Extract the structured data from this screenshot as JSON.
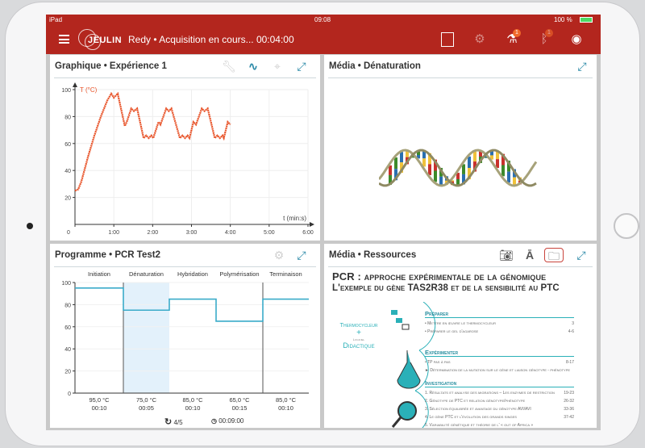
{
  "status_bar": {
    "device": "iPad",
    "time": "09:08",
    "battery": "100 %"
  },
  "app_bar": {
    "logo": "JEULIN",
    "title": "Redy • Acquisition en cours... 00:04:00",
    "icons": [
      {
        "name": "stop-icon"
      },
      {
        "name": "settings-icon"
      },
      {
        "name": "flask-icon",
        "badge": "1"
      },
      {
        "name": "bluetooth-icon",
        "badge": "1"
      },
      {
        "name": "eye-icon"
      }
    ]
  },
  "graph_panel": {
    "title": "Graphique • Expérience 1",
    "tools": [
      "wrench-icon",
      "curve-icon",
      "crosshair-icon",
      "expand-icon"
    ]
  },
  "media_panel": {
    "title": "Média • Dénaturation"
  },
  "program_panel": {
    "title": "Programme • PCR Test2",
    "cycle": "4/5",
    "duration": "00:09:00"
  },
  "resources_panel": {
    "title": "Média • Ressources",
    "tools": [
      "camera-icon",
      "text-icon",
      "folder-icon",
      "expand-icon"
    ],
    "active_tool": "folder-icon",
    "document": {
      "title1": "PCR : approche expérimentale de la génomique",
      "title2": "L'exemple du gène TAS2R38 et de la sensibilité au PTC",
      "side": {
        "line1": "Thermocycleur",
        "plus": "+",
        "small": "Logiciel",
        "line2": "Didactique"
      },
      "sections": [
        {
          "heading": "Préparer",
          "items": [
            {
              "text": "•  Mettre en œuvre le thermocycleur",
              "page": "3"
            },
            {
              "text": "•  Préparer le gel d'agarose",
              "page": "4-6"
            }
          ]
        },
        {
          "heading": "Expérimenter",
          "items": [
            {
              "text": "•  TP pas à pas",
              "page": "8-17"
            },
            {
              "text": "► Détermination de la mutation sur le gène et liaison génotype - phénotype",
              "page": ""
            }
          ]
        },
        {
          "heading": "Investigation",
          "items": [
            {
              "text": "1. Résultats et analyse des migrations – Les enzymes de restriction",
              "page": "19-23"
            },
            {
              "text": "2. Génotype de PTC et relation génotype/phénotype",
              "page": "26-32"
            },
            {
              "text": "3. Sélection équilibrée et avantage du génotype AVI/AVI",
              "page": "33-36"
            },
            {
              "text": "4. Le gène PTC et l'évolution des grands singes",
              "page": "37-42"
            },
            {
              "text": "5. Variabilité génétique et théorie de l' « out of Africa »",
              "page": ""
            }
          ]
        }
      ]
    }
  },
  "chart_data": [
    {
      "type": "line",
      "title": "",
      "ylabel": "T (°C)",
      "xlabel": "t (min:s)",
      "xlim": [
        "0:00",
        "6:00"
      ],
      "ylim": [
        0,
        100
      ],
      "xticks": [
        "0",
        "1:00",
        "2:00",
        "3:00",
        "4:00",
        "5:00",
        "6:00"
      ],
      "yticks": [
        "20",
        "40",
        "60",
        "80",
        "100"
      ],
      "grid": true,
      "color": "#e8542a",
      "series": [
        {
          "points": [
            [
              "0:00",
              25
            ],
            [
              "0:05",
              26
            ],
            [
              "0:10",
              32
            ],
            [
              "0:20",
              50
            ],
            [
              "0:30",
              66
            ],
            [
              "0:40",
              80
            ],
            [
              "0:50",
              92
            ],
            [
              "0:56",
              97
            ],
            [
              "1:00",
              94
            ],
            [
              "1:06",
              97
            ],
            [
              "1:17",
              73
            ],
            [
              "1:20",
              76
            ],
            [
              "1:27",
              86
            ],
            [
              "1:31",
              84
            ],
            [
              "1:36",
              86
            ],
            [
              "1:46",
              64
            ],
            [
              "1:50",
              66
            ],
            [
              "1:54",
              64
            ],
            [
              "1:58",
              66
            ],
            [
              "2:01",
              64
            ],
            [
              "2:09",
              76
            ],
            [
              "2:12",
              74
            ],
            [
              "2:21",
              86
            ],
            [
              "2:25",
              84
            ],
            [
              "2:29",
              86
            ],
            [
              "2:42",
              64
            ],
            [
              "2:46",
              66
            ],
            [
              "2:50",
              64
            ],
            [
              "2:54",
              66
            ],
            [
              "2:57",
              64
            ],
            [
              "3:03",
              76
            ],
            [
              "3:07",
              74
            ],
            [
              "3:16",
              86
            ],
            [
              "3:20",
              84
            ],
            [
              "3:25",
              86
            ],
            [
              "3:36",
              64
            ],
            [
              "3:40",
              66
            ],
            [
              "3:44",
              64
            ],
            [
              "3:48",
              66
            ],
            [
              "3:50",
              64
            ],
            [
              "3:56",
              76
            ],
            [
              "4:00",
              74
            ]
          ]
        }
      ]
    },
    {
      "type": "line",
      "title": "",
      "yticks": [
        "0",
        "20",
        "40",
        "60",
        "80",
        "100"
      ],
      "ylim": [
        0,
        100
      ],
      "color": "#3aabc9",
      "highlight_color": "#e3f1fb",
      "active_step": 1,
      "steps": [
        {
          "name": "Initiation",
          "temp": 95.0,
          "temp_label": "95,0 °C",
          "time": "00:10"
        },
        {
          "name": "Dénaturation",
          "temp": 75.0,
          "temp_label": "75,0 °C",
          "time": "00:05"
        },
        {
          "name": "Hybridation",
          "temp": 85.0,
          "temp_label": "85,0 °C",
          "time": "00:10"
        },
        {
          "name": "Polymérisation",
          "temp": 65.0,
          "temp_label": "65,0 °C",
          "time": "00:15"
        },
        {
          "name": "Terminaison",
          "temp": 85.0,
          "temp_label": "85,0 °C",
          "time": "00:10"
        }
      ]
    }
  ]
}
